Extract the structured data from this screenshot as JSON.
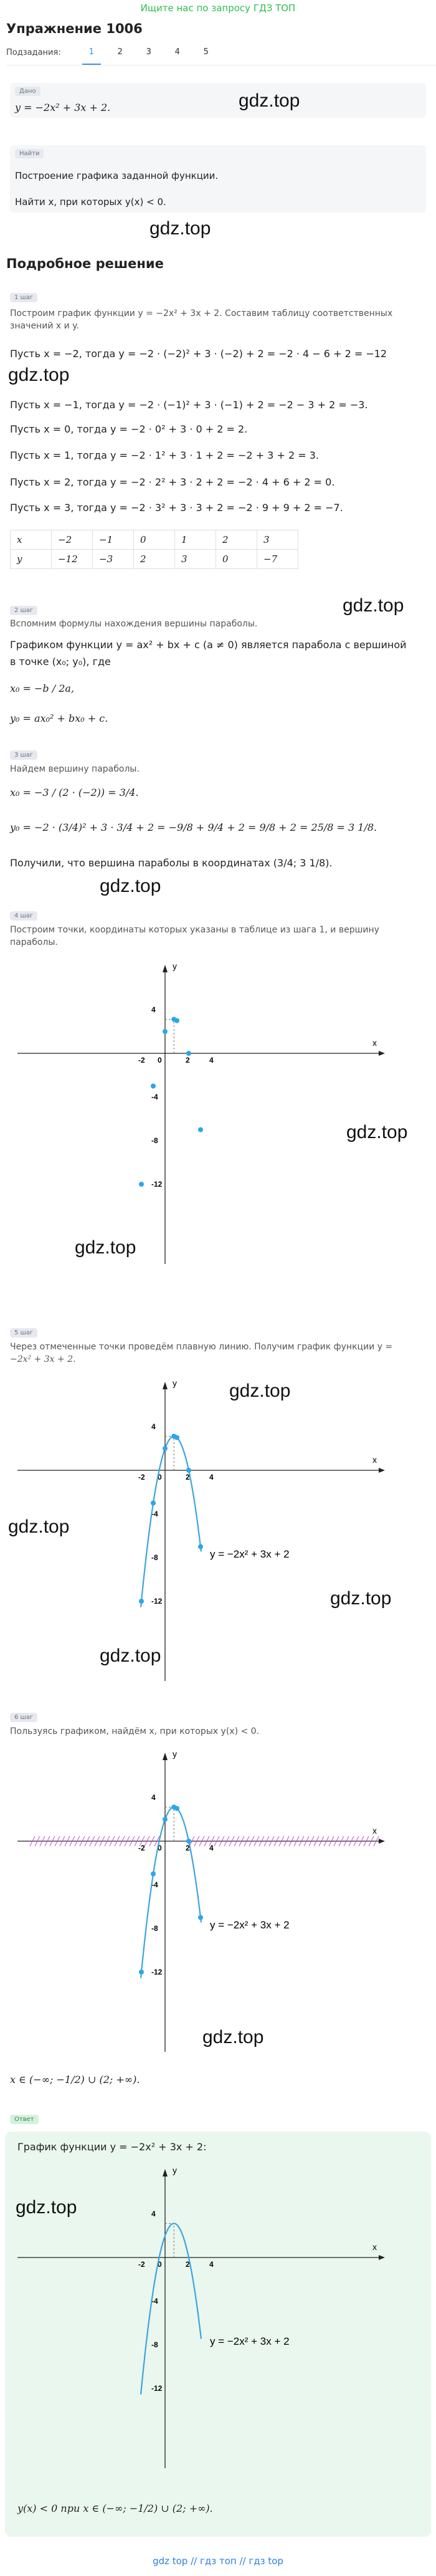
{
  "top_link": "Ищите нас по запросу ГДЗ ТОП",
  "title": "Упражнение 1006",
  "subtabs": {
    "label": "Подзадания:",
    "items": [
      "1",
      "2",
      "3",
      "4",
      "5"
    ],
    "active": "1"
  },
  "given": {
    "pill": "Дано",
    "formula": "y = −2x² + 3x + 2."
  },
  "find": {
    "pill": "Найти",
    "task1": "Построение графика заданной функции.",
    "task2": "Найти x, при которых y(x) < 0."
  },
  "watermark": "gdz.top",
  "solution_title": "Подробное решение",
  "step1": {
    "pill": "1 шаг",
    "intro": "Построим график функции y = −2x² + 3x + 2. Составим таблицу соответственных значений x и y.",
    "lines": [
      "Пусть x = −2, тогда y = −2 · (−2)² + 3 · (−2) + 2 = −2 · 4 − 6 + 2 = −12",
      "Пусть x = −1, тогда y = −2 · (−1)² + 3 · (−1) + 2 = −2 − 3 + 2 = −3.",
      "Пусть x = 0, тогда y = −2 · 0² + 3 · 0 + 2 = 2.",
      "Пусть x = 1, тогда y = −2 · 1² + 3 · 1 + 2 = −2 + 3 + 2 = 3.",
      "Пусть x = 2, тогда y = −2 · 2² + 3 · 2 + 2 = −2 · 4 + 6 + 2 = 0.",
      "Пусть x = 3, тогда y = −2 · 3² + 3 · 3 + 2 = −2 · 9 + 9 + 2 = −7."
    ],
    "table": {
      "x": [
        "x",
        "−2",
        "−1",
        "0",
        "1",
        "2",
        "3"
      ],
      "y": [
        "y",
        "−12",
        "−3",
        "2",
        "3",
        "0",
        "−7"
      ]
    }
  },
  "step2": {
    "pill": "2 шаг",
    "intro": "Вспомним формулы нахождения вершины параболы.",
    "line1": "Графиком функции y = ax² + bx + c (a ≠ 0) является парабола с вершиной",
    "line2": "в точке (x₀; y₀), где",
    "f1": "x₀ = −b / 2a,",
    "f2": "y₀ = ax₀² + bx₀ + c."
  },
  "step3": {
    "pill": "3 шаг",
    "intro": "Найдем вершину параболы.",
    "f1": "x₀ = −3 / (2 · (−2)) = 3/4.",
    "f2": "y₀ = −2 · (3/4)² + 3 · 3/4 + 2 = −9/8 + 9/4 + 2 = 9/8 + 2 = 25/8 = 3 1/8.",
    "conclusion": "Получили, что вершина параболы в координатах (3/4; 3 1/8)."
  },
  "step4": {
    "pill": "4 шаг",
    "intro1": "Построим точки, координаты которых указаны в таблице из шага 1, и вершину",
    "intro2": "параболы."
  },
  "step5": {
    "pill": "5 шаг",
    "intro1": "Через отмеченные точки проведём плавную линию. Получим график функции y =",
    "intro2": "−2x² + 3x + 2."
  },
  "step6": {
    "pill": "6 шаг",
    "intro": "Пользуясь графиком, найдём x, при которых y(x) < 0."
  },
  "answer_interval": "x ∈ (−∞; −1/2) ∪ (2; +∞).",
  "answer": {
    "pill": "Ответ",
    "title": "График функции y = −2x² + 3x + 2:",
    "result": "y(x) < 0 при x ∈ (−∞; −1/2) ∪ (2; +∞)."
  },
  "graph": {
    "x_label": "x",
    "y_label": "y",
    "x_ticks": [
      "-2",
      "0",
      "2",
      "4"
    ],
    "y_ticks": [
      "4",
      "-4",
      "-8",
      "-12"
    ],
    "curve_label": "y = −2x² + 3x + 2",
    "points_color": "#2aa7e8",
    "curve_color": "#3da5dd",
    "hatch_color": "#c24fd0"
  },
  "chart_data": {
    "type": "scatter",
    "title": "",
    "xlabel": "x",
    "ylabel": "y",
    "x": [
      -2,
      -1,
      0,
      0.75,
      1,
      2,
      3
    ],
    "y": [
      -12,
      -3,
      2,
      3.125,
      3,
      0,
      -7
    ],
    "xlim": [
      -2,
      4
    ],
    "ylim": [
      -12,
      4
    ],
    "function": "y = −2x² + 3x + 2"
  },
  "footer": "gdz top // гдз топ // гдз top"
}
